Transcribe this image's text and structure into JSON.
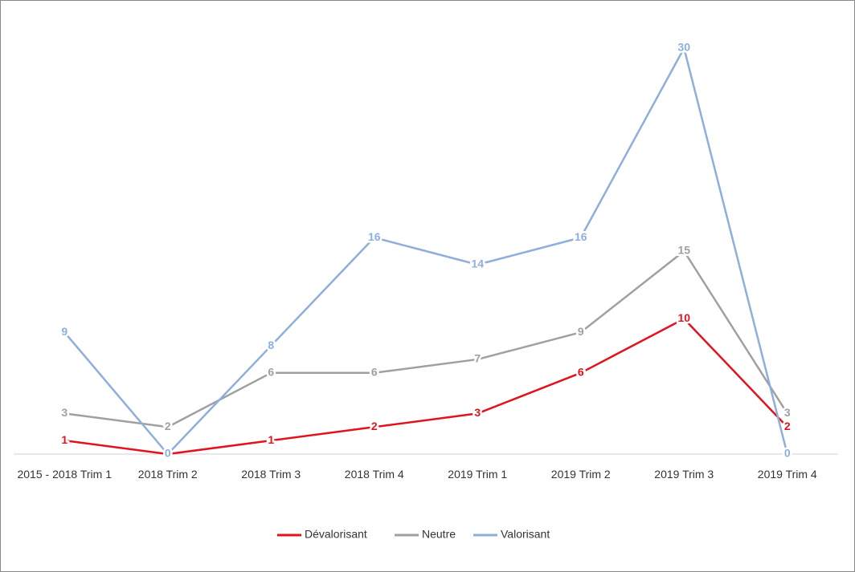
{
  "chart_data": {
    "type": "line",
    "categories": [
      "2015 - 2018 Trim 1",
      "2018 Trim 2",
      "2018 Trim 3",
      "2018 Trim 4",
      "2019 Trim 1",
      "2019 Trim 2",
      "2019 Trim 3",
      "2019 Trim 4"
    ],
    "series": [
      {
        "name": "Dévalorisant",
        "color": "#e0141e",
        "values": [
          1,
          0,
          1,
          2,
          3,
          6,
          10,
          2
        ]
      },
      {
        "name": "Neutre",
        "color": "#a0a0a0",
        "values": [
          3,
          2,
          6,
          6,
          7,
          9,
          15,
          3
        ]
      },
      {
        "name": "Valorisant",
        "color": "#8eaedc",
        "values": [
          9,
          0,
          8,
          16,
          14,
          16,
          30,
          0
        ]
      }
    ],
    "ylim": [
      0,
      30
    ],
    "legend": "bottom",
    "data_labels": true
  }
}
